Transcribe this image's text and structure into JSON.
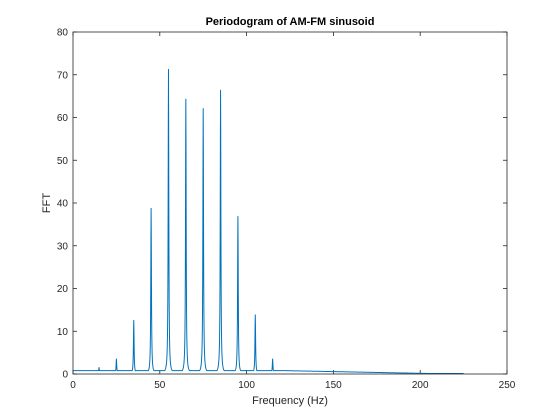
{
  "chart_data": {
    "type": "line",
    "title": "Periodogram of AM-FM sinusoid",
    "xlabel": "Frequency (Hz)",
    "ylabel": "FFT",
    "xlim": [
      0,
      250
    ],
    "ylim": [
      0,
      80
    ],
    "xticks": [
      0,
      50,
      100,
      150,
      200,
      250
    ],
    "yticks": [
      0,
      10,
      20,
      30,
      40,
      50,
      60,
      70,
      80
    ],
    "grid": false,
    "legend": "none",
    "line_color": "#0072BD",
    "series": [
      {
        "x_range": [
          0,
          225
        ],
        "baseline": 0.8,
        "peaks": [
          {
            "x": 15,
            "y": 1.5
          },
          {
            "x": 25,
            "y": 3.5
          },
          {
            "x": 35,
            "y": 12.5
          },
          {
            "x": 45,
            "y": 38.7
          },
          {
            "x": 55,
            "y": 71.2
          },
          {
            "x": 65,
            "y": 64.2
          },
          {
            "x": 75,
            "y": 62.0
          },
          {
            "x": 85,
            "y": 66.3
          },
          {
            "x": 95,
            "y": 36.8
          },
          {
            "x": 105,
            "y": 13.8
          },
          {
            "x": 115,
            "y": 3.5
          }
        ]
      }
    ]
  }
}
